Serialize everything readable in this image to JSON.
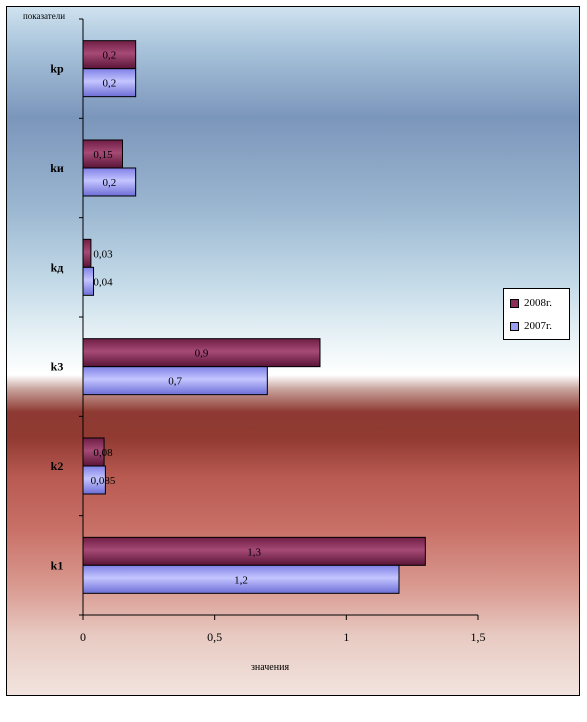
{
  "chart_data": {
    "type": "bar",
    "orientation": "horizontal",
    "categories": [
      "k1",
      "k2",
      "k3",
      "kд",
      "kи",
      "kр"
    ],
    "series": [
      {
        "name": "2008г.",
        "values": [
          1.3,
          0.08,
          0.9,
          0.03,
          0.15,
          0.2
        ],
        "labels": [
          "1,3",
          "0,08",
          "0,9",
          "0,03",
          "0,15",
          "0,2"
        ]
      },
      {
        "name": "2007г.",
        "values": [
          1.2,
          0.085,
          0.7,
          0.04,
          0.2,
          0.2
        ],
        "labels": [
          "1,2",
          "0,085",
          "0,7",
          "0,04",
          "0,2",
          "0,2"
        ]
      }
    ],
    "xlim": [
      0,
      1.5
    ],
    "xticks": [
      0,
      0.5,
      1,
      1.5
    ],
    "xtick_labels": [
      "0",
      "0,5",
      "1",
      "1,5"
    ],
    "xlabel": "значения",
    "ylabel": "показатели",
    "legend_position": "right",
    "grid": false,
    "colors": {
      "2008г.": "#8b2e5a",
      "2007г.": "#9a9cf2"
    }
  }
}
